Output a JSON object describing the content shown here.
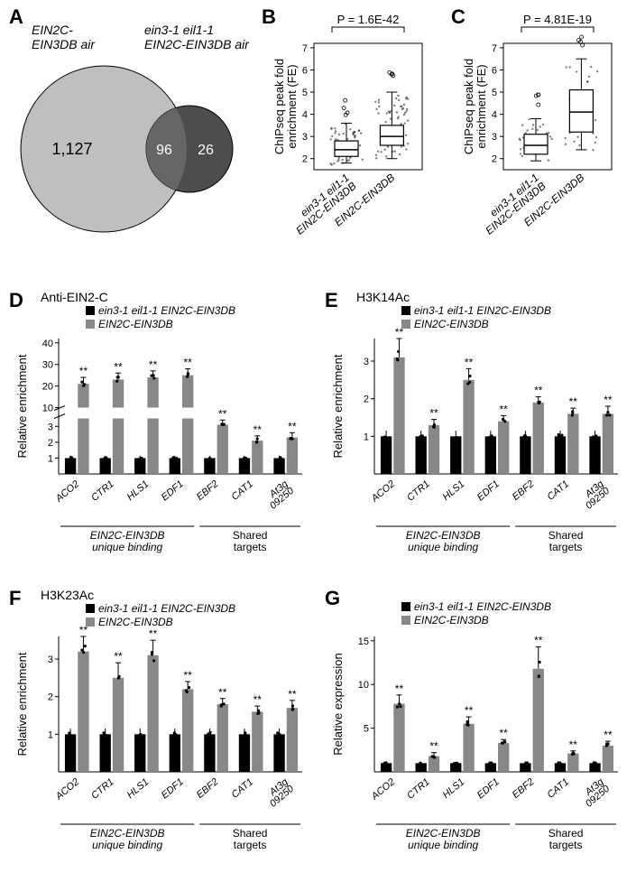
{
  "colors": {
    "venn_left": "#bfbfbf",
    "venn_right": "#4d4d4d",
    "venn_overlap": "#666666",
    "bar_black": "#000000",
    "bar_gray": "#888888",
    "axis": "#000000",
    "text": "#000000",
    "box_fill": "#f0f0f0"
  },
  "fonts": {
    "panel_label_size": 22,
    "axis_label_size": 13,
    "tick_size": 11,
    "title_size": 13,
    "legend_size": 12
  },
  "panelA": {
    "label": "A",
    "left_title1": "EIN2C-",
    "left_title2": "EIN3DB air",
    "right_title1": "ein3-1 eil1-1",
    "right_title2": "EIN2C-EIN3DB air",
    "left_count": "1,127",
    "overlap_count": "96",
    "right_count": "26"
  },
  "panelB": {
    "label": "B",
    "pval": "P = 1.6E-42",
    "ylabel1": "ChIPseq peak fold",
    "ylabel2": "enrichment (FE)",
    "yticks": [
      2,
      3,
      4,
      5,
      6,
      7
    ],
    "cat1a": "ein3-1 eil1-1",
    "cat1b": "EIN2C-EIN3DB",
    "cat2": "EIN2C-EIN3DB",
    "box1": {
      "q1": 2.1,
      "med": 2.4,
      "q3": 2.8,
      "whisker_lo": 1.8,
      "whisker_hi": 3.6
    },
    "box2": {
      "q1": 2.6,
      "med": 3.0,
      "q3": 3.5,
      "whisker_lo": 2.0,
      "whisker_hi": 5.0
    },
    "jitter_n": 60
  },
  "panelC": {
    "label": "C",
    "pval": "P = 4.81E-19",
    "ylabel1": "ChIPseq peak fold",
    "ylabel2": "enrichment (FE)",
    "yticks": [
      2,
      3,
      4,
      5,
      6,
      7
    ],
    "cat1a": "ein3-1 eil1-1",
    "cat1b": "EIN2C-EIN3DB",
    "cat2": "EIN2C-EIN3DB",
    "box1": {
      "q1": 2.2,
      "med": 2.6,
      "q3": 3.1,
      "whisker_lo": 1.9,
      "whisker_hi": 3.8
    },
    "box2": {
      "q1": 3.2,
      "med": 4.1,
      "q3": 5.1,
      "whisker_lo": 2.4,
      "whisker_hi": 6.5
    },
    "jitter_n": 30
  },
  "bar_shared": {
    "legend_black": "ein3-1 eil1-1 EIN2C-EIN3DB",
    "legend_gray": "EIN2C-EIN3DB",
    "genes": [
      "ACO2",
      "CTR1",
      "HLS1",
      "EDF1",
      "EBF2",
      "CAT1",
      "At3g\n09250"
    ],
    "group1_label1": "EIN2C-EIN3DB",
    "group1_label2": "unique binding",
    "group2_label1": "Shared",
    "group2_label2": "targets",
    "star": "**"
  },
  "panelD": {
    "label": "D",
    "title": "Anti-EIN2-C",
    "ylabel": "Relative enrichment",
    "has_break": true,
    "lower_ylim": [
      0,
      3.5
    ],
    "lower_yticks": [
      1,
      2,
      3
    ],
    "upper_ylim": [
      10,
      42
    ],
    "upper_yticks": [
      10,
      20,
      30,
      40
    ],
    "black_vals": [
      1,
      1,
      1,
      1,
      1,
      1,
      1
    ],
    "gray_vals": [
      21,
      23,
      24,
      25,
      3.1,
      2.1,
      2.3
    ],
    "err": [
      3,
      3,
      3,
      3,
      0.3,
      0.3,
      0.3
    ]
  },
  "panelE": {
    "label": "E",
    "title": "H3K14Ac",
    "ylabel": "Relative enrichment",
    "has_break": false,
    "ylim": [
      0,
      3.6
    ],
    "yticks": [
      1,
      2,
      3
    ],
    "black_vals": [
      1,
      1,
      1,
      1,
      1,
      1,
      1
    ],
    "gray_vals": [
      3.1,
      1.3,
      2.5,
      1.4,
      1.9,
      1.6,
      1.6
    ],
    "err": [
      0.5,
      0.15,
      0.3,
      0.15,
      0.15,
      0.15,
      0.2
    ]
  },
  "panelF": {
    "label": "F",
    "title": "H3K23Ac",
    "ylabel": "Relative enrichment",
    "has_break": false,
    "ylim": [
      0,
      3.6
    ],
    "yticks": [
      1,
      2,
      3
    ],
    "black_vals": [
      1,
      1,
      1,
      1,
      1,
      1,
      1
    ],
    "gray_vals": [
      3.2,
      2.5,
      3.1,
      2.2,
      1.8,
      1.6,
      1.7
    ],
    "err": [
      0.4,
      0.4,
      0.4,
      0.2,
      0.15,
      0.15,
      0.2
    ]
  },
  "panelG": {
    "label": "G",
    "title": "",
    "ylabel": "Relative expression",
    "has_break": false,
    "ylim": [
      0,
      15.5
    ],
    "yticks": [
      5,
      10,
      15
    ],
    "black_vals": [
      1,
      1,
      1,
      1,
      1,
      1,
      1
    ],
    "gray_vals": [
      7.8,
      1.8,
      5.5,
      3.3,
      11.8,
      2.1,
      3.0
    ],
    "err": [
      1.0,
      0.4,
      0.8,
      0.4,
      2.5,
      0.3,
      0.5
    ]
  }
}
